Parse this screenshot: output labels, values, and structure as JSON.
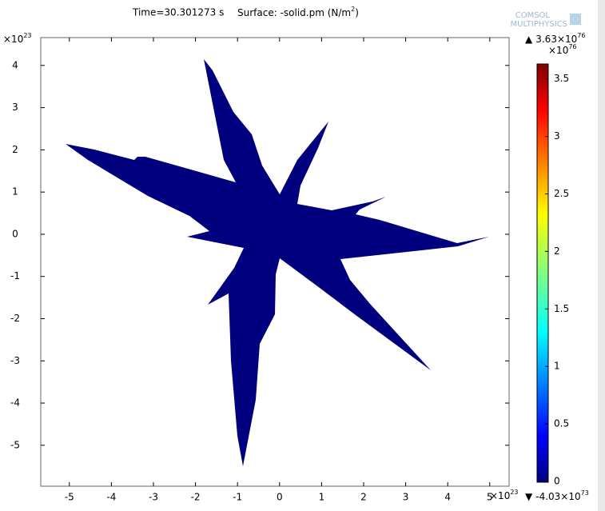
{
  "chart_data": {
    "type": "surface",
    "title": {
      "time": "Time=30.301273 s",
      "surface": "Surface: -solid.pm (N/m",
      "surface_exp": "2",
      "surface_end": ")"
    },
    "logo": [
      "COMSOL",
      "MULTIPHYSICS"
    ],
    "xlim": [
      -5.68,
      5.46
    ],
    "xticks": [
      -5,
      -4,
      -3,
      -2,
      -1,
      0,
      1,
      2,
      3,
      4,
      5
    ],
    "ylim": [
      -5.97,
      4.66
    ],
    "yticks": [
      -5,
      -4,
      -3,
      -2,
      -1,
      0,
      1,
      2,
      3,
      4
    ],
    "x_multiplier": {
      "base": "×10",
      "exp": "23"
    },
    "y_multiplier": {
      "base": "×10",
      "exp": "23"
    },
    "fill_color": "#00007f",
    "colorbar": {
      "lim": [
        0,
        3.63
      ],
      "ticks": [
        0,
        0.5,
        1,
        1.5,
        2,
        2.5,
        3,
        3.5
      ],
      "multiplier": {
        "base": "×10",
        "exp": "76"
      },
      "max": {
        "marker": "▲",
        "base": "3.63×10",
        "exp": "76"
      },
      "min": {
        "marker": "▼",
        "base": "-4.03×10",
        "exp": "73"
      }
    }
  }
}
